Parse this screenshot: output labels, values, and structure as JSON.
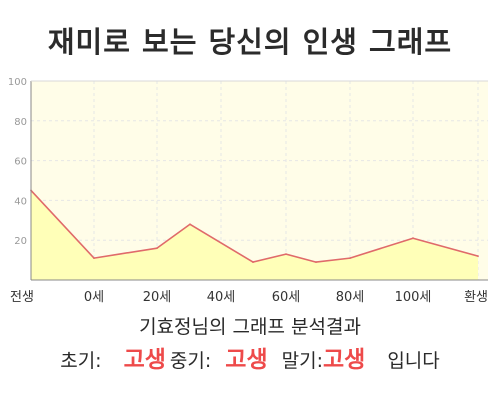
{
  "title": "재미로 보는 당신의 인생 그래프",
  "chart_data": {
    "type": "area",
    "title": "재미로 보는 당신의 인생 그래프",
    "x_tick_labels": [
      "전생",
      "0세",
      "20세",
      "40세",
      "60세",
      "80세",
      "100세",
      "환생"
    ],
    "y_ticks": [
      20,
      40,
      60,
      80,
      100
    ],
    "ylim": [
      0,
      100
    ],
    "grid": true,
    "x": [
      "전생",
      "0세",
      "20세",
      "30세",
      "50세",
      "60세",
      "70세",
      "80세",
      "100세",
      "환생"
    ],
    "values": [
      45,
      11,
      16,
      28,
      9,
      13,
      9,
      11,
      21,
      12
    ],
    "colors": {
      "line": "#e06a6a",
      "fill": "#ffffb8",
      "plot_bg": "#fffde8",
      "grid": "#e6e6e6",
      "axis": "#888888",
      "tick_text": "#999999",
      "x_label_text": "#333333"
    }
  },
  "result": {
    "heading": "기효정님의 그래프 분석결과",
    "early_label": "초기:",
    "early_value": "고생",
    "middle_label": "중기:",
    "middle_value": "고생",
    "late_label": "말기:",
    "late_value": "고생",
    "suffix": "입니다",
    "highlight_color": "#ee4a4a"
  }
}
